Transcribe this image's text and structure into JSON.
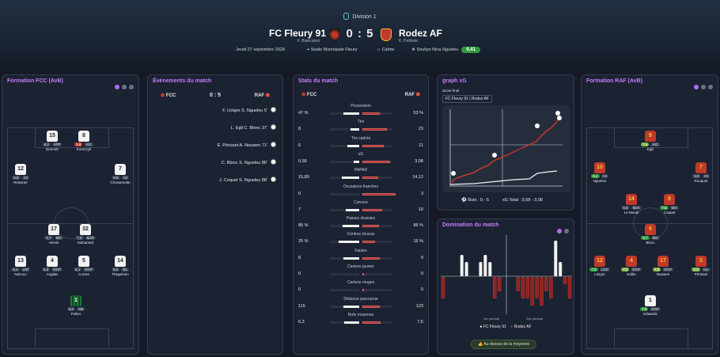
{
  "header": {
    "competition": "Division 1",
    "home": {
      "name": "FC Fleury 91",
      "coach": "F. Biancaloni"
    },
    "away": {
      "name": "Rodez AF",
      "coach": "K. Petilovic"
    },
    "score": "0 : 5",
    "date": "Jeudi 27 septembre 2029",
    "stadium": "Stade Municipale Fleury",
    "weather": "Calme",
    "motm": "Souliyo Nina Ngueleu",
    "motm_rating": "9,41"
  },
  "colors": {
    "purple": "#c77dff",
    "home": "#f2f2f2",
    "away": "#c0392b",
    "green": "#2f9a3a"
  },
  "formation_home": {
    "title": "Formation FCC (AvB)",
    "players": [
      {
        "num": "15",
        "rating": "6,2",
        "pos": "ATP",
        "name": "Bennett"
      },
      {
        "num": "8",
        "rating": "5,9",
        "pos": "AtC",
        "name": "Komczyk"
      },
      {
        "num": "12",
        "rating": "6,6",
        "pos": "AIl",
        "name": "Reissner"
      },
      {
        "num": "7",
        "rating": "6,6",
        "pos": "AIl",
        "name": "Chossenotte"
      },
      {
        "num": "17",
        "rating": "6,7",
        "pos": "MD",
        "name": "Vernis"
      },
      {
        "num": "32",
        "rating": "7,0",
        "pos": "MJR",
        "name": "Mohamed"
      },
      {
        "num": "13",
        "rating": "6,1",
        "pos": "LOf",
        "name": "Ndzono"
      },
      {
        "num": "4",
        "rating": "6,3",
        "pos": "DCP",
        "name": "Anglais"
      },
      {
        "num": "5",
        "rating": "6,1",
        "pos": "DCP",
        "name": "Correa"
      },
      {
        "num": "14",
        "rating": "6,2",
        "pos": "DL",
        "name": "Thegersen"
      },
      {
        "num": "1",
        "rating": "6,5",
        "pos": "GB",
        "name": "Pollier"
      }
    ]
  },
  "formation_away": {
    "title": "Formation RAF (AvB)",
    "players": [
      {
        "num": "9",
        "rating": "7,4",
        "pos": "AtC",
        "name": "Egili"
      },
      {
        "num": "10",
        "rating": "9,4",
        "pos": "AIl",
        "name": "Ngueleu"
      },
      {
        "num": "7",
        "rating": "6,8",
        "pos": "AIl",
        "name": "Rouquet"
      },
      {
        "num": "14",
        "rating": "6,8",
        "pos": "MJA",
        "name": "Le Mouël"
      },
      {
        "num": "8",
        "rating": "7,6",
        "pos": "MO",
        "name": "Coquet"
      },
      {
        "num": "6",
        "rating": "8,7",
        "pos": "MD",
        "name": "Blonc"
      },
      {
        "num": "12",
        "rating": "7,3",
        "pos": "LOD",
        "name": "Lloigre"
      },
      {
        "num": "4",
        "rating": "7,0",
        "pos": "DCP",
        "name": "Eddie"
      },
      {
        "num": "17",
        "rating": "7,8",
        "pos": "DCP",
        "name": "Nouwen"
      },
      {
        "num": "3",
        "rating": "7,4",
        "pos": "ALI",
        "name": "Périsset"
      },
      {
        "num": "1",
        "rating": "7,6",
        "pos": "GAP",
        "name": "Edwards"
      }
    ]
  },
  "events": {
    "title": "Événements du match",
    "home": "FCC",
    "score": "0 : 5",
    "away": "RAF",
    "rows": [
      "F. Lloigre  S. Ngueleu 5'",
      "L. Egli  C. Blonc 37'",
      "É. Périsset  A. Nouwen 71'",
      "C. Blonc  S. Ngueleu 86'",
      "J. Coquet  S. Ngueleu 88'"
    ]
  },
  "stats": {
    "title": "Stats du match",
    "home": "FCC",
    "away": "RAF",
    "rows": [
      {
        "label": "Possession",
        "l": "47 %",
        "r": "53 %",
        "lv": 47,
        "rv": 53
      },
      {
        "label": "Tirs",
        "l": "8",
        "r": "23",
        "lv": 8,
        "rv": 23
      },
      {
        "label": "Tirs cadrés",
        "l": "6",
        "r": "11",
        "lv": 6,
        "rv": 11
      },
      {
        "label": "xG",
        "l": "0,58",
        "r": "3,08",
        "lv": 0.58,
        "rv": 3.08
      },
      {
        "label": "PAPAD",
        "l": "15,89",
        "r": "14,12",
        "lv": 15.89,
        "rv": 14.12
      },
      {
        "label": "Occasions franches",
        "l": "0",
        "r": "3",
        "lv": 0,
        "rv": 3
      },
      {
        "label": "Corners",
        "l": "7",
        "r": "10",
        "lv": 7,
        "rv": 10
      },
      {
        "label": "Passes réussies",
        "l": "85 %",
        "r": "86 %",
        "lv": 85,
        "rv": 86
      },
      {
        "label": "Centres réussis",
        "l": "25 %",
        "r": "16 %",
        "lv": 25,
        "rv": 16
      },
      {
        "label": "Fautes",
        "l": "8",
        "r": "9",
        "lv": 8,
        "rv": 9
      },
      {
        "label": "Cartons jaunes",
        "l": "0",
        "r": "0",
        "lv": 0,
        "rv": 0
      },
      {
        "label": "Cartons rouges",
        "l": "0",
        "r": "0",
        "lv": 0,
        "rv": 0
      },
      {
        "label": "Distance parcourue",
        "l": "115",
        "r": "123",
        "lv": 115,
        "rv": 123
      },
      {
        "label": "Note moyenne",
        "l": "6,3",
        "r": "7,5",
        "lv": 6.3,
        "rv": 7.5
      }
    ]
  },
  "xg": {
    "title": "graph xG",
    "subtitle": "Score final",
    "tab_home": "FC Fleury 91",
    "tab_away": "Rodez AF",
    "buts": "Buts : 0 - 5",
    "total": "xG  Total : 0,58 - 3,08"
  },
  "domination": {
    "title": "Domination du match",
    "half1": "1re période",
    "half2": "2de période",
    "legend_home": "FC Fleury 91",
    "legend_away": "Rodez AF",
    "button": "Au-dessus de la moyenne"
  },
  "chart_data": {
    "type": "bar",
    "series": [
      {
        "name": "FC Fleury 91",
        "values": [
          0,
          0,
          0,
          0,
          3,
          2,
          0,
          0,
          2,
          3,
          2,
          0,
          0,
          0,
          0,
          0,
          0,
          0,
          0,
          0,
          0,
          0,
          0,
          0,
          5,
          2,
          0,
          0
        ]
      },
      {
        "name": "Rodez AF",
        "values": [
          -3,
          0,
          0,
          0,
          0,
          0,
          0,
          0,
          0,
          0,
          0,
          -3,
          -2,
          0,
          0,
          0,
          -2,
          -3,
          -3,
          -4,
          -3,
          -4,
          -2,
          -3,
          0,
          0,
          -1,
          -3
        ]
      }
    ]
  }
}
